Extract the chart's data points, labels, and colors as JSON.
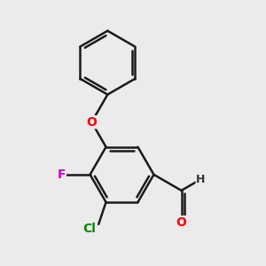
{
  "background_color": "#ebebeb",
  "bond_color": "#1a1a1a",
  "bond_width": 1.8,
  "dbo": 0.012,
  "atom_colors": {
    "O": "#ff0000",
    "F": "#cc00cc",
    "Cl": "#008800",
    "H": "#333333"
  },
  "font_size": 10
}
